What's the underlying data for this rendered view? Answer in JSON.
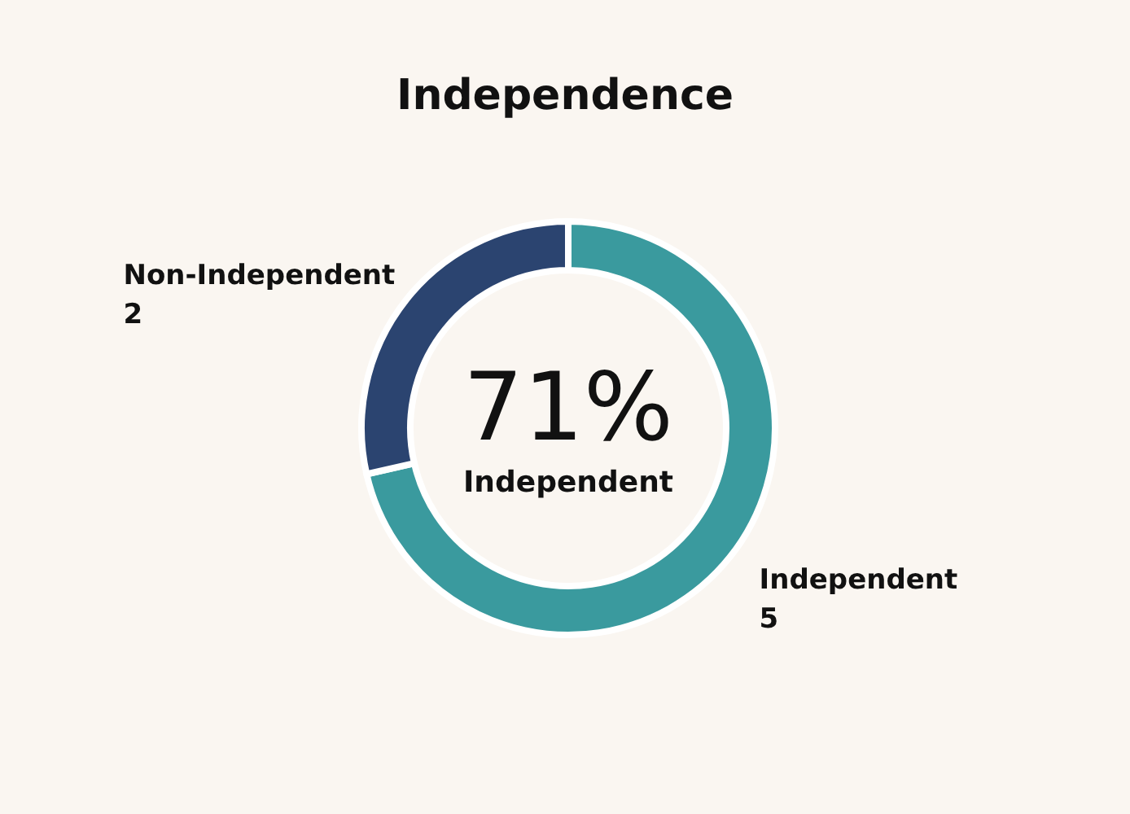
{
  "chart_data": {
    "type": "donut",
    "title": "Independence",
    "categories": [
      "Independent",
      "Non-Independent"
    ],
    "values": [
      5,
      2
    ],
    "colors": [
      "#3a9a9e",
      "#2b4470"
    ],
    "data_labels": true,
    "annotations": [
      "71%",
      "Independent"
    ]
  }
}
